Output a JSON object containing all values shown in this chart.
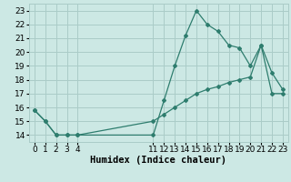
{
  "title": "",
  "xlabel": "Humidex (Indice chaleur)",
  "xlim": [
    -0.5,
    23.5
  ],
  "ylim": [
    13.5,
    23.5
  ],
  "yticks": [
    14,
    15,
    16,
    17,
    18,
    19,
    20,
    21,
    22,
    23
  ],
  "xticks": [
    0,
    1,
    2,
    3,
    4,
    11,
    12,
    13,
    14,
    15,
    16,
    17,
    18,
    19,
    20,
    21,
    22,
    23
  ],
  "line1_x": [
    0,
    1,
    2,
    3,
    4,
    11,
    12,
    13,
    14,
    15,
    16,
    17,
    18,
    19,
    20,
    21,
    22,
    23
  ],
  "line1_y": [
    15.8,
    15.0,
    14.0,
    14.0,
    14.0,
    14.0,
    16.5,
    19.0,
    21.2,
    23.0,
    22.0,
    21.5,
    20.5,
    20.3,
    19.0,
    20.5,
    17.0,
    17.0
  ],
  "line2_x": [
    0,
    1,
    2,
    3,
    4,
    11,
    12,
    13,
    14,
    15,
    16,
    17,
    18,
    19,
    20,
    21,
    22,
    23
  ],
  "line2_y": [
    15.8,
    15.0,
    14.0,
    14.0,
    14.0,
    15.0,
    15.5,
    16.0,
    16.5,
    17.0,
    17.3,
    17.5,
    17.8,
    18.0,
    18.2,
    20.5,
    18.5,
    17.3
  ],
  "line_color": "#2e7d6e",
  "bg_color": "#cce8e4",
  "grid_color": "#aaccc8",
  "tick_label_fontsize": 6.5,
  "xlabel_fontsize": 7.5
}
